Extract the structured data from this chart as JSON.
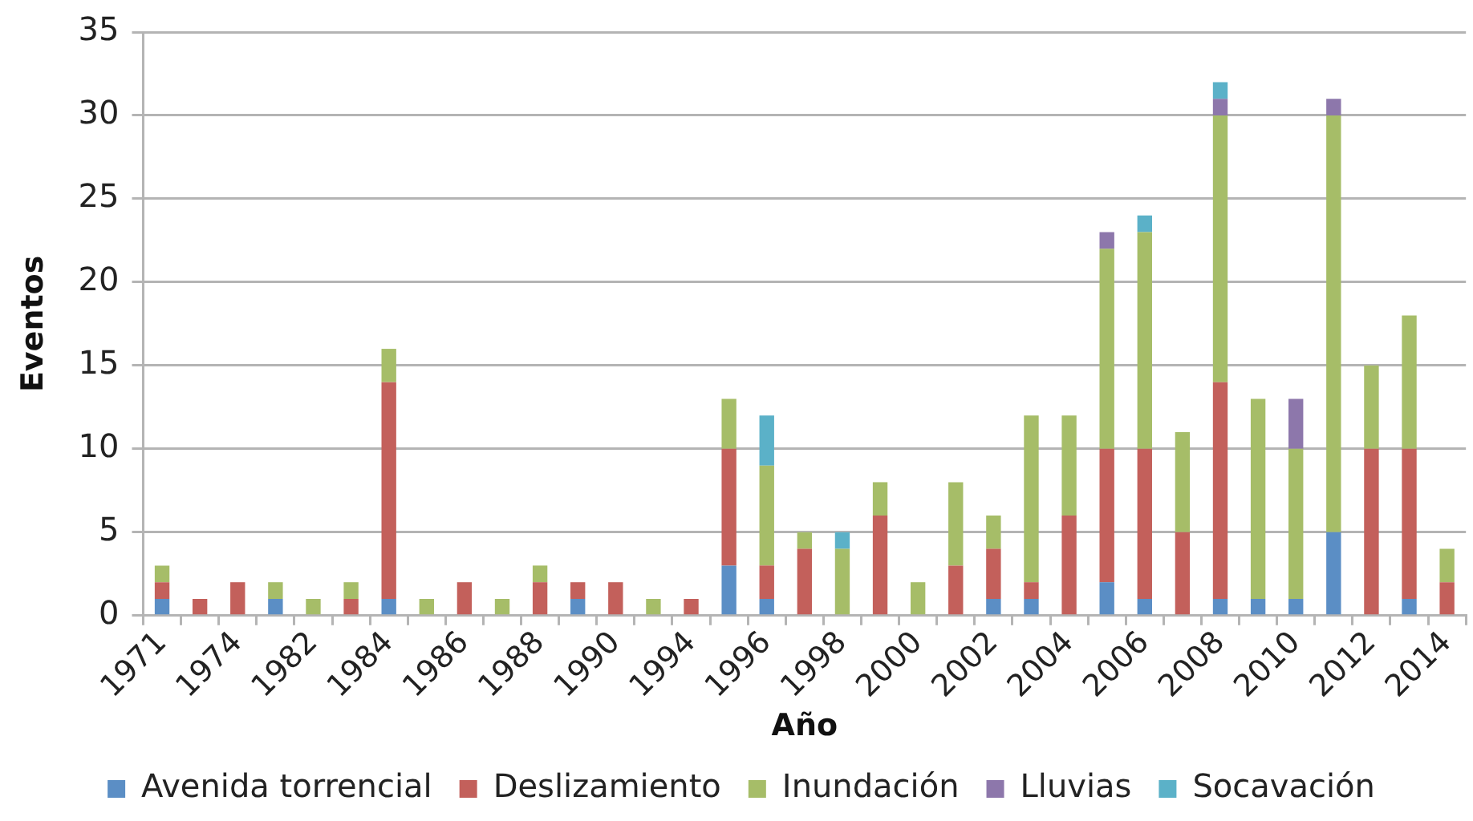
{
  "chart_data": {
    "type": "bar",
    "stacked": true,
    "xlabel": "Año",
    "ylabel": "Eventos",
    "categories": [
      "1971",
      null,
      "1974",
      null,
      "1982",
      null,
      "1984",
      null,
      "1986",
      null,
      "1988",
      null,
      "1990",
      null,
      "1994",
      null,
      "1996",
      null,
      "1998",
      null,
      "2000",
      null,
      "2002",
      null,
      "2004",
      null,
      "2006",
      null,
      "2008",
      null,
      "2010",
      null,
      "2012",
      null,
      "2014"
    ],
    "series": [
      {
        "name": "Avenida torrencial",
        "color": "#5b8ec5",
        "values": [
          1,
          null,
          null,
          1,
          null,
          null,
          1,
          null,
          null,
          null,
          null,
          1,
          null,
          null,
          null,
          3,
          1,
          null,
          null,
          null,
          null,
          null,
          1,
          1,
          null,
          2,
          1,
          null,
          1,
          1,
          1,
          5,
          null,
          1,
          null
        ]
      },
      {
        "name": "Deslizamiento",
        "color": "#c3605b",
        "values": [
          1,
          1,
          2,
          null,
          null,
          1,
          13,
          null,
          2,
          null,
          2,
          1,
          2,
          null,
          1,
          7,
          2,
          4,
          null,
          6,
          null,
          3,
          3,
          1,
          6,
          8,
          9,
          5,
          13,
          null,
          null,
          null,
          10,
          9,
          2
        ]
      },
      {
        "name": "Inundación",
        "color": "#a6bd68",
        "values": [
          1,
          null,
          null,
          1,
          1,
          1,
          2,
          1,
          null,
          1,
          1,
          null,
          null,
          1,
          null,
          3,
          6,
          1,
          4,
          2,
          2,
          5,
          2,
          10,
          6,
          12,
          13,
          6,
          16,
          12,
          9,
          25,
          5,
          8,
          2
        ]
      },
      {
        "name": "Lluvias",
        "color": "#8d77ab",
        "values": [
          null,
          null,
          null,
          null,
          null,
          null,
          null,
          null,
          null,
          null,
          null,
          null,
          null,
          null,
          null,
          null,
          null,
          null,
          null,
          null,
          null,
          null,
          null,
          null,
          null,
          1,
          null,
          null,
          1,
          null,
          3,
          1,
          null,
          null,
          null
        ]
      },
      {
        "name": "Socavación",
        "color": "#5bb1c8",
        "values": [
          null,
          null,
          null,
          null,
          null,
          null,
          null,
          null,
          null,
          null,
          null,
          null,
          null,
          null,
          null,
          null,
          3,
          null,
          1,
          null,
          null,
          null,
          null,
          null,
          null,
          null,
          1,
          null,
          1,
          null,
          null,
          null,
          null,
          null,
          null
        ]
      }
    ],
    "ylim": [
      0,
      35
    ],
    "yticks": [
      0,
      5,
      10,
      15,
      20,
      25,
      30,
      35
    ],
    "grid": "y",
    "legend": "bottom"
  }
}
